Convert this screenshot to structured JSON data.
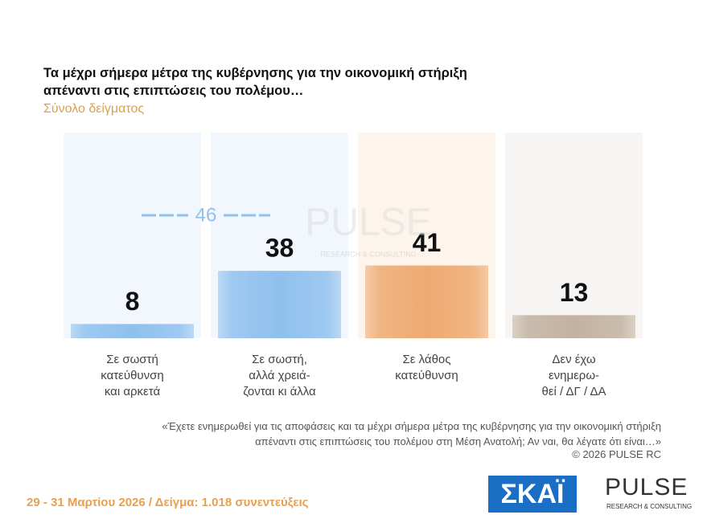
{
  "chart_data": {
    "type": "bar",
    "title": "Τα μέχρι σήμερα μέτρα της κυβέρνησης για την οικονομική στήριξη\nαπέναντι στις επιπτώσεις του πολέμου…",
    "subtitle": "Σύνολο δείγματος",
    "categories": [
      "Σε σωστή\nκατεύθυνση\nκαι αρκετά",
      "Σε σωστή,\nαλλά χρειά-\nζονται κι άλλα",
      "Σε λάθος\nκατεύθυνση",
      "Δεν έχω\nενημερω-\nθεί / ΔΓ / ΔΑ"
    ],
    "values": [
      8,
      38,
      41,
      13
    ],
    "colors": [
      "#8fc0ee",
      "#8fc0ee",
      "#eeaa70",
      "#c2b2a0"
    ],
    "ylim": [
      0,
      116
    ],
    "annotation": 46,
    "watermark": "PULSE",
    "watermark_sub": "RESEARCH & CONSULTING",
    "question": "«Έχετε ενημερωθεί για τις αποφάσεις και τα μέχρι σήμερα  μέτρα της κυβέρνησης για την οικονομική στήριξη\nαπέναντι στις επιπτώσεις του πολέμου στη Μέση Ανατολή; Αν ναι, θα λέγατε ότι είναι…»",
    "copyright": "©  2026  PULSE RC",
    "footer": "29 - 31  Μαρτίου 2026  /  Δείγμα:  1.018 συνεντεύξεις",
    "logo_channel": "ΣΚΑΪ",
    "logo_pulse": "PULSE",
    "logo_pulse_sub": "RESEARCH & CONSULTING"
  }
}
